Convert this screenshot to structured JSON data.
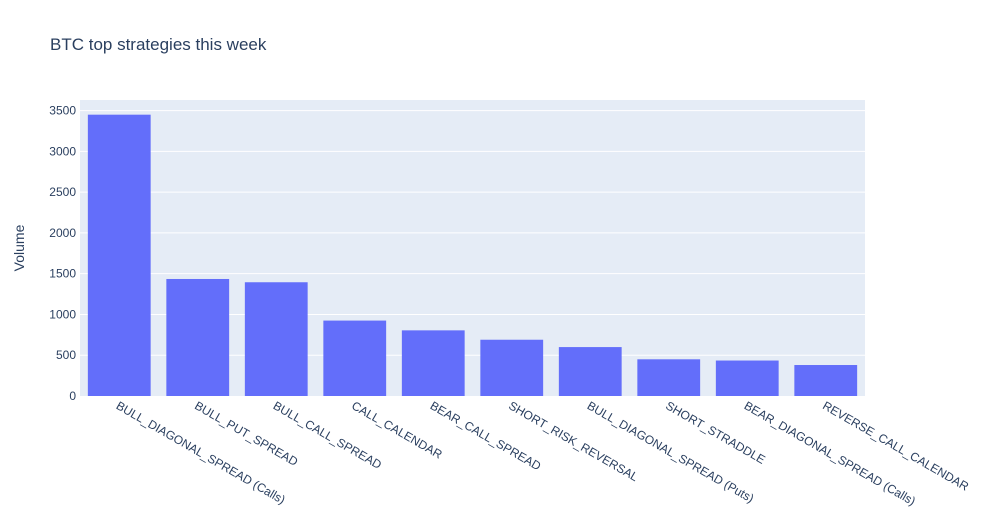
{
  "chart_data": {
    "type": "bar",
    "title": "BTC top strategies this week",
    "xlabel": "",
    "ylabel": "Volume",
    "categories": [
      "BULL_DIAGONAL_SPREAD (Calls)",
      "BULL_PUT_SPREAD",
      "BULL_CALL_SPREAD",
      "CALL_CALENDAR",
      "BEAR_CALL_SPREAD",
      "SHORT_RISK_REVERSAL",
      "BULL_DIAGONAL_SPREAD (Puts)",
      "SHORT_STRADDLE",
      "BEAR_DIAGONAL_SPREAD (Calls)",
      "REVERSE_CALL_CALENDAR"
    ],
    "values": [
      3450,
      1435,
      1395,
      925,
      805,
      690,
      600,
      450,
      435,
      380
    ],
    "ylim": [
      0,
      3630
    ],
    "yticks": [
      0,
      500,
      1000,
      1500,
      2000,
      2500,
      3000,
      3500
    ],
    "grid": true,
    "legend": "none",
    "colors": {
      "bar": "#636efa",
      "plot_bg": "#e5ecf6",
      "grid": "#ffffff",
      "text": "#2a3f5f"
    }
  }
}
